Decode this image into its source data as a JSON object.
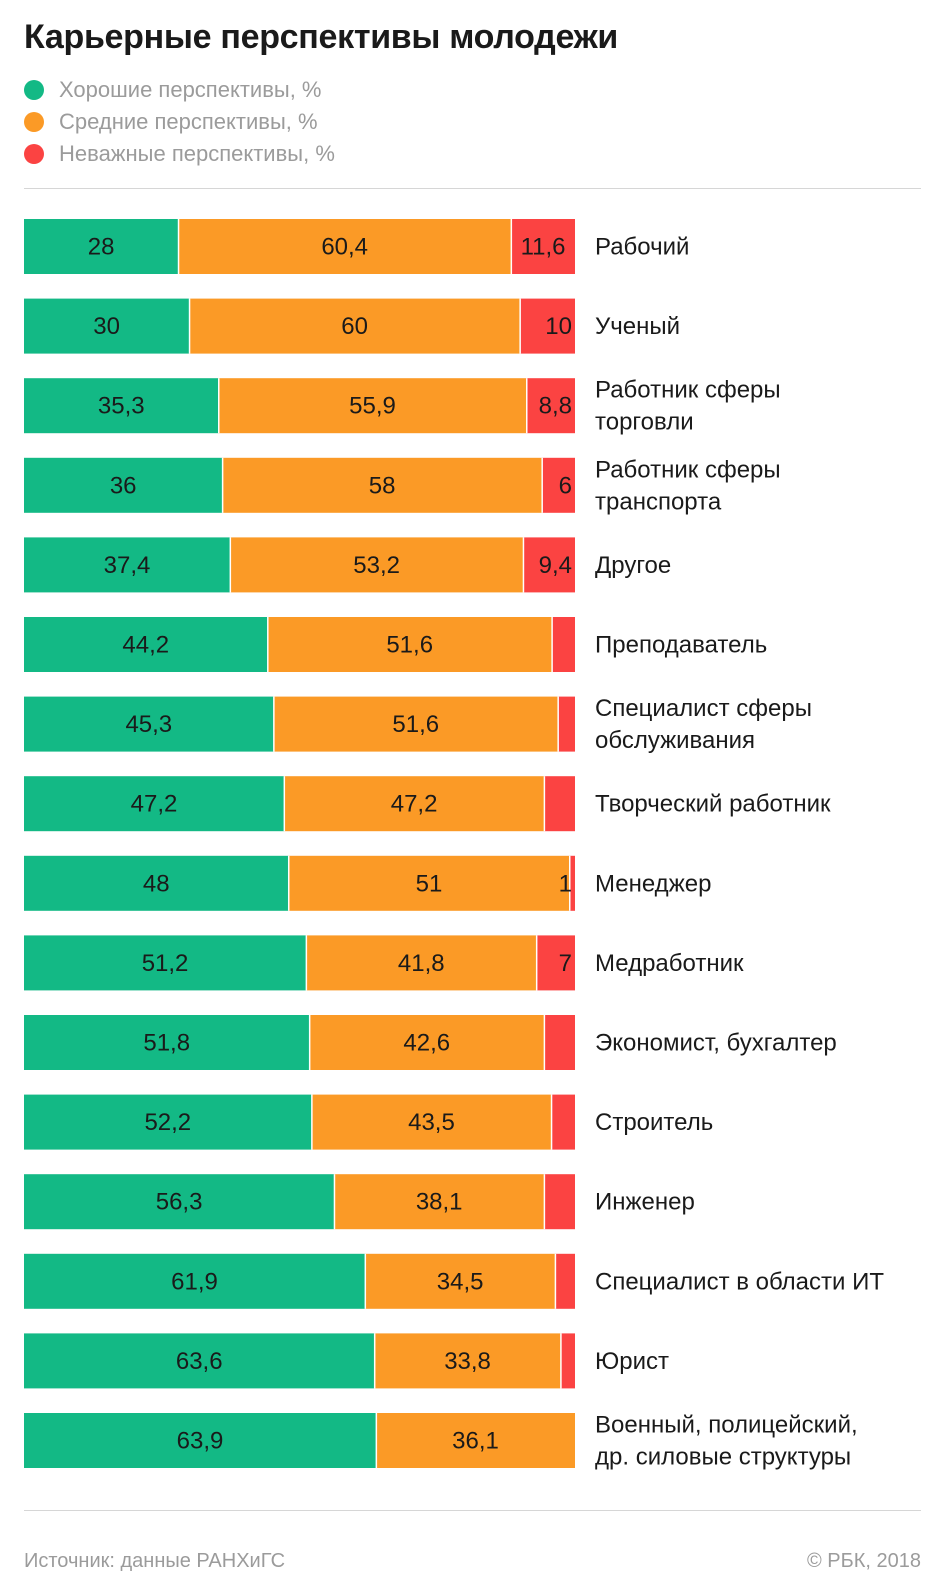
{
  "title": "Карьерные перспективы молодежи",
  "footer": {
    "source": "Источник: данные РАНХиГС",
    "copyright": "© РБК, 2018"
  },
  "colors": {
    "good": "#13b985",
    "medium": "#fb9a26",
    "bad": "#fb4342"
  },
  "chart_data": {
    "type": "bar",
    "orientation": "horizontal",
    "stacked": true,
    "legend_placement": "top-left",
    "grid": false,
    "xlim": [
      0,
      100
    ],
    "series": [
      {
        "name": "Хорошие перспективы, %",
        "key": "good",
        "values": [
          28,
          30,
          35.3,
          36,
          37.4,
          44.2,
          45.3,
          47.2,
          48,
          51.2,
          51.8,
          52.2,
          56.3,
          61.9,
          63.6,
          63.9
        ],
        "labels": [
          "28",
          "30",
          "35,3",
          "36",
          "37,4",
          "44,2",
          "45,3",
          "47,2",
          "48",
          "51,2",
          "51,8",
          "52,2",
          "56,3",
          "61,9",
          "63,6",
          "63,9"
        ]
      },
      {
        "name": "Средние перспективы, %",
        "key": "medium",
        "values": [
          60.4,
          60,
          55.9,
          58,
          53.2,
          51.6,
          51.6,
          47.2,
          51,
          41.8,
          42.6,
          43.5,
          38.1,
          34.5,
          33.8,
          36.1
        ],
        "labels": [
          "60,4",
          "60",
          "55,9",
          "58",
          "53,2",
          "51,6",
          "51,6",
          "47,2",
          "51",
          "41,8",
          "42,6",
          "43,5",
          "38,1",
          "34,5",
          "33,8",
          "36,1"
        ]
      },
      {
        "name": "Неважные перспективы, %",
        "key": "bad",
        "values": [
          11.6,
          10,
          8.8,
          6,
          9.4,
          4.2,
          3.1,
          5.6,
          1,
          7,
          5.6,
          4.3,
          5.6,
          3.6,
          2.6,
          0
        ],
        "labels": [
          "11,6",
          "10",
          "8,8",
          "6",
          "9,4",
          "",
          "",
          "",
          "1",
          "7",
          "",
          "",
          "",
          "",
          "",
          ""
        ]
      }
    ],
    "categories": [
      [
        "Рабочий"
      ],
      [
        "Ученый"
      ],
      [
        "Работник сферы",
        "торговли"
      ],
      [
        "Работник сферы",
        "транспорта"
      ],
      [
        "Другое"
      ],
      [
        "Преподаватель"
      ],
      [
        "Специалист сферы",
        "обслуживания"
      ],
      [
        "Творческий работник"
      ],
      [
        "Менеджер"
      ],
      [
        "Медработник"
      ],
      [
        "Экономист, бухгалтер"
      ],
      [
        "Строитель"
      ],
      [
        "Инженер"
      ],
      [
        "Специалист в области ИТ"
      ],
      [
        "Юрист"
      ],
      [
        "Военный, полицейский,",
        "др. силовые структуры"
      ]
    ]
  }
}
